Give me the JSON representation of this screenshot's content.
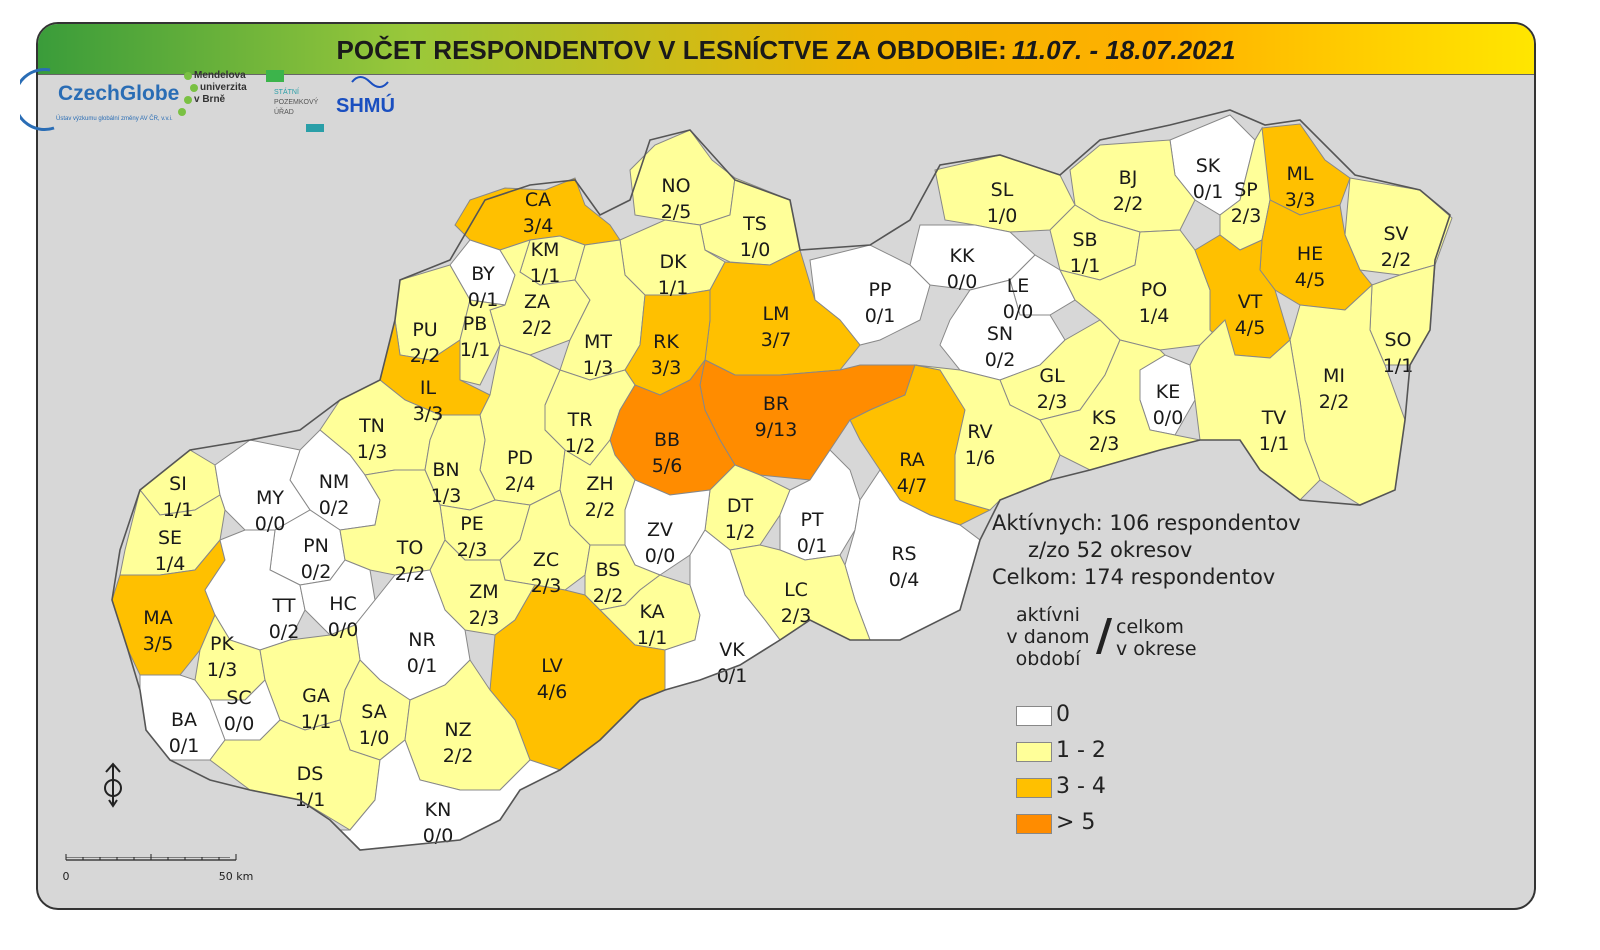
{
  "title": {
    "main": "POČET RESPONDENTOV V LESNÍCTVE ZA OBDOBIE:",
    "period": "11.07. - 18.07.2021"
  },
  "logos": {
    "czechglobe": "CzechGlobe",
    "czechglobe_sub": "Ústav výzkumu globální změny AV ČR, v.v.i.",
    "mendelu": [
      "Mendelova",
      "univerzita",
      "v Brně"
    ],
    "spu": [
      "STÁTNÍ",
      "POZEMKOVÝ",
      "ÚŘAD"
    ],
    "shmu": "SHMÚ"
  },
  "colors": {
    "class_0": "#ffffff",
    "class_1_2": "#ffff99",
    "class_3_4": "#ffc000",
    "class_5plus": "#ff8c00",
    "background": "#d7d7d7",
    "border": "#888888"
  },
  "districts": [
    {
      "code": "CA",
      "value": "3/4",
      "active": 3
    },
    {
      "code": "NO",
      "value": "2/5",
      "active": 2
    },
    {
      "code": "SK",
      "value": "0/1",
      "active": 0
    },
    {
      "code": "ML",
      "value": "3/3",
      "active": 3
    },
    {
      "code": "BJ",
      "value": "2/2",
      "active": 2
    },
    {
      "code": "SP",
      "value": "2/3",
      "active": 2
    },
    {
      "code": "SL",
      "value": "1/0",
      "active": 1
    },
    {
      "code": "KM",
      "value": "1/1",
      "active": 1
    },
    {
      "code": "TS",
      "value": "1/0",
      "active": 1
    },
    {
      "code": "SV",
      "value": "2/2",
      "active": 2
    },
    {
      "code": "HE",
      "value": "4/5",
      "active": 4
    },
    {
      "code": "SB",
      "value": "1/1",
      "active": 1
    },
    {
      "code": "KK",
      "value": "0/0",
      "active": 0
    },
    {
      "code": "BY",
      "value": "0/1",
      "active": 0
    },
    {
      "code": "DK",
      "value": "1/1",
      "active": 1
    },
    {
      "code": "ZA",
      "value": "2/2",
      "active": 2
    },
    {
      "code": "LE",
      "value": "0/0",
      "active": 0
    },
    {
      "code": "PP",
      "value": "0/1",
      "active": 0
    },
    {
      "code": "LM",
      "value": "3/7",
      "active": 3
    },
    {
      "code": "PO",
      "value": "1/4",
      "active": 1
    },
    {
      "code": "VT",
      "value": "4/5",
      "active": 4
    },
    {
      "code": "PU",
      "value": "2/2",
      "active": 2
    },
    {
      "code": "PB",
      "value": "1/1",
      "active": 1
    },
    {
      "code": "MT",
      "value": "1/3",
      "active": 1
    },
    {
      "code": "RK",
      "value": "3/3",
      "active": 3
    },
    {
      "code": "SN",
      "value": "0/2",
      "active": 0
    },
    {
      "code": "SO",
      "value": "1/1",
      "active": 1
    },
    {
      "code": "IL",
      "value": "3/3",
      "active": 3
    },
    {
      "code": "MI",
      "value": "2/2",
      "active": 2
    },
    {
      "code": "KE",
      "value": "0/0",
      "active": 0
    },
    {
      "code": "GL",
      "value": "2/3",
      "active": 2
    },
    {
      "code": "BR",
      "value": "9/13",
      "active": 9
    },
    {
      "code": "TN",
      "value": "1/3",
      "active": 1
    },
    {
      "code": "TR",
      "value": "1/2",
      "active": 1
    },
    {
      "code": "KS",
      "value": "2/3",
      "active": 2
    },
    {
      "code": "TV",
      "value": "1/1",
      "active": 1
    },
    {
      "code": "BB",
      "value": "5/6",
      "active": 5
    },
    {
      "code": "RA",
      "value": "4/7",
      "active": 4
    },
    {
      "code": "RV",
      "value": "1/6",
      "active": 1
    },
    {
      "code": "PD",
      "value": "2/4",
      "active": 2
    },
    {
      "code": "BN",
      "value": "1/3",
      "active": 1
    },
    {
      "code": "NM",
      "value": "0/2",
      "active": 0
    },
    {
      "code": "SI",
      "value": "1/1",
      "active": 1
    },
    {
      "code": "MY",
      "value": "0/0",
      "active": 0
    },
    {
      "code": "ZH",
      "value": "2/2",
      "active": 2
    },
    {
      "code": "DT",
      "value": "1/2",
      "active": 1
    },
    {
      "code": "PE",
      "value": "2/3",
      "active": 2
    },
    {
      "code": "PT",
      "value": "0/1",
      "active": 0
    },
    {
      "code": "SE",
      "value": "1/4",
      "active": 1
    },
    {
      "code": "PN",
      "value": "0/2",
      "active": 0
    },
    {
      "code": "ZV",
      "value": "0/0",
      "active": 0
    },
    {
      "code": "TO",
      "value": "2/2",
      "active": 2
    },
    {
      "code": "RS",
      "value": "0/4",
      "active": 0
    },
    {
      "code": "ZC",
      "value": "2/3",
      "active": 2
    },
    {
      "code": "BS",
      "value": "2/2",
      "active": 2
    },
    {
      "code": "MA",
      "value": "3/5",
      "active": 3
    },
    {
      "code": "TT",
      "value": "0/2",
      "active": 0
    },
    {
      "code": "HC",
      "value": "0/0",
      "active": 0
    },
    {
      "code": "ZM",
      "value": "2/3",
      "active": 2
    },
    {
      "code": "LC",
      "value": "2/3",
      "active": 2
    },
    {
      "code": "KA",
      "value": "1/1",
      "active": 1
    },
    {
      "code": "NR",
      "value": "0/1",
      "active": 0
    },
    {
      "code": "PK",
      "value": "1/3",
      "active": 1
    },
    {
      "code": "LV",
      "value": "4/6",
      "active": 4
    },
    {
      "code": "VK",
      "value": "0/1",
      "active": 0
    },
    {
      "code": "GA",
      "value": "1/1",
      "active": 1
    },
    {
      "code": "SC",
      "value": "0/0",
      "active": 0
    },
    {
      "code": "SA",
      "value": "1/0",
      "active": 1
    },
    {
      "code": "NZ",
      "value": "2/2",
      "active": 2
    },
    {
      "code": "BA",
      "value": "0/1",
      "active": 0
    },
    {
      "code": "DS",
      "value": "1/1",
      "active": 1
    },
    {
      "code": "KN",
      "value": "0/0",
      "active": 0
    }
  ],
  "stats": {
    "line1": "Aktívnych: 106 respondentov",
    "line2": "z/zo 52 okresov",
    "line3": "Celkom: 174 respondentov"
  },
  "legend": {
    "head_active": [
      "aktívni",
      "v danom",
      "období"
    ],
    "slash": "/",
    "head_total": [
      "celkom",
      "v okrese"
    ],
    "items": [
      {
        "label": "0",
        "color": "#ffffff"
      },
      {
        "label": "1 - 2",
        "color": "#ffff99"
      },
      {
        "label": "3 - 4",
        "color": "#ffc000"
      },
      {
        "label": "> 5",
        "color": "#ff8c00"
      }
    ]
  },
  "scale": {
    "start": "0",
    "end": "50 km"
  }
}
